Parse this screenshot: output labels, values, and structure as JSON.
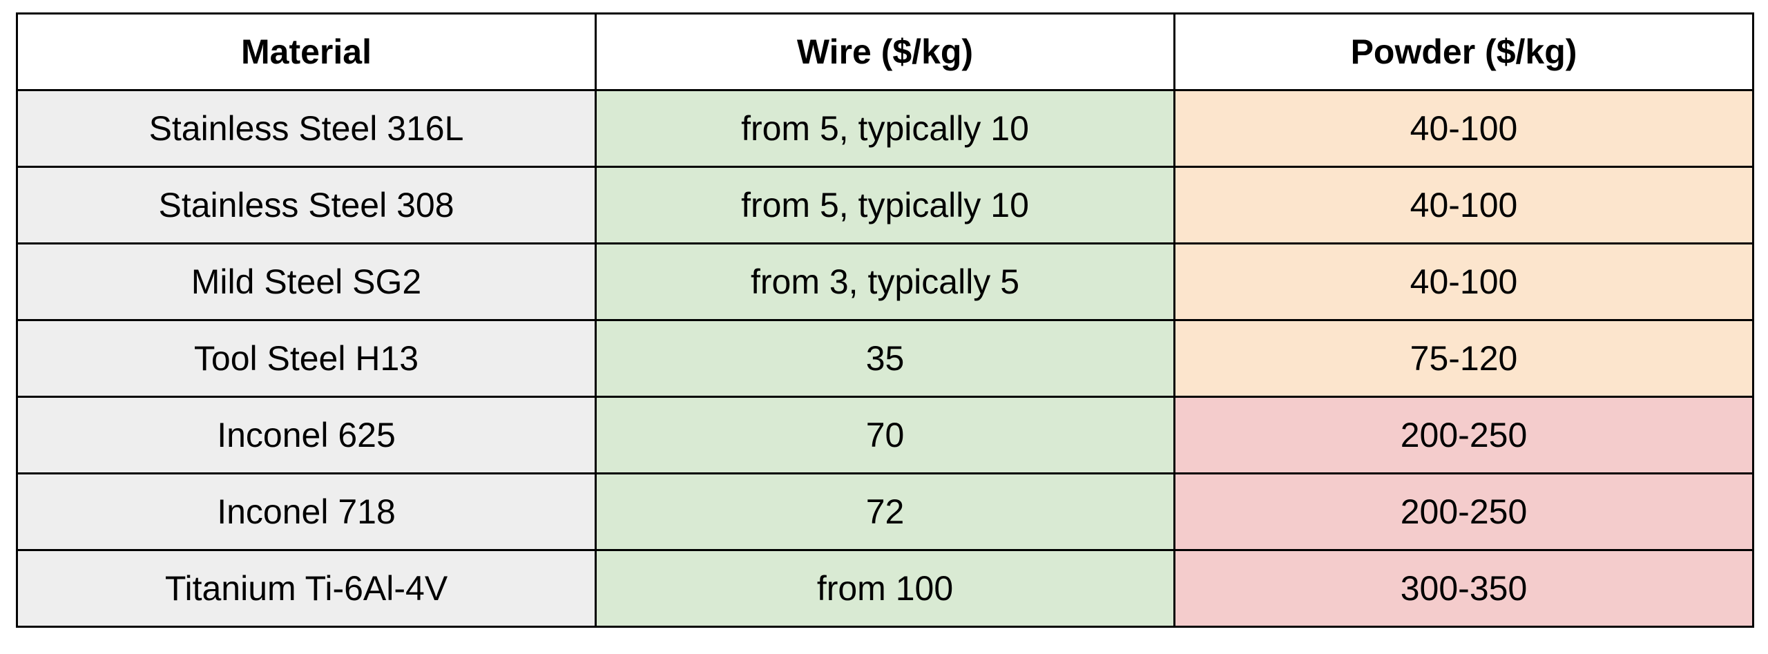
{
  "table": {
    "header": [
      "Material",
      "Wire ($/kg)",
      "Powder ($/kg)"
    ],
    "rows": [
      [
        "Stainless Steel 316L",
        "from 5, typically 10",
        "40-100"
      ],
      [
        "Stainless Steel 308",
        "from 5, typically 10",
        "40-100"
      ],
      [
        "Mild Steel SG2",
        "from 3, typically 5",
        "40-100"
      ],
      [
        "Tool Steel H13",
        "35",
        "75-120"
      ],
      [
        "Inconel 625",
        "70",
        "200-250"
      ],
      [
        "Inconel 718",
        "72",
        "200-250"
      ],
      [
        "Titanium Ti-6Al-4V",
        "from 100",
        "300-350"
      ]
    ]
  }
}
